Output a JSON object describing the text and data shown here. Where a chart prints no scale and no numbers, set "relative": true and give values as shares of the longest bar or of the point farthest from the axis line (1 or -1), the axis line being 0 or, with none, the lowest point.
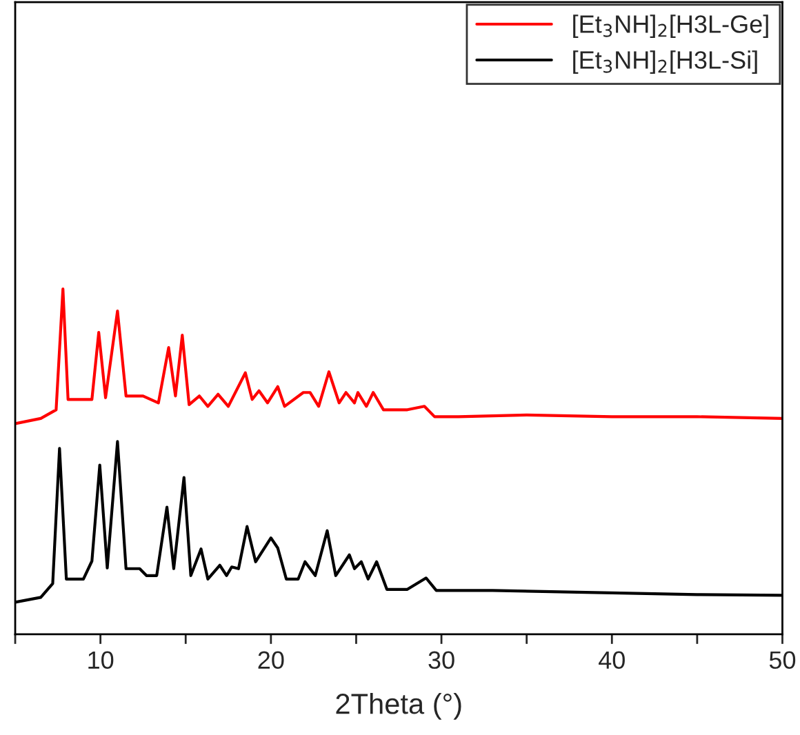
{
  "chart_data": {
    "type": "line",
    "relative": true,
    "xlabel": "2Theta (°)",
    "xlim": [
      5,
      50
    ],
    "xticks": [
      {
        "value": 5,
        "label": null
      },
      10,
      {
        "value": 15,
        "label": null
      },
      20,
      {
        "value": 25,
        "label": null
      },
      30,
      {
        "value": 35,
        "label": null
      },
      40,
      {
        "value": 45,
        "label": null
      },
      50
    ],
    "legend": "top right",
    "grid": false,
    "series": [
      {
        "name": "[Et$_{3}$NH]$_{2}$[H3L-Ge]",
        "color": "#ff0000",
        "x": [
          5,
          6.5,
          7.4,
          7.8,
          8.1,
          9.5,
          9.9,
          10.3,
          11.0,
          11.5,
          12.5,
          13.4,
          14.0,
          14.4,
          14.8,
          15.2,
          15.8,
          16.3,
          16.9,
          17.5,
          18.5,
          18.9,
          19.3,
          19.8,
          20.4,
          20.8,
          21.9,
          22.3,
          22.8,
          23.4,
          24.0,
          24.4,
          24.9,
          25.1,
          25.6,
          26.0,
          26.6,
          28.0,
          29.0,
          29.6,
          31,
          35,
          40,
          45,
          50
        ],
        "values": [
          0.61,
          0.625,
          0.65,
          1.0,
          0.68,
          0.68,
          0.874,
          0.685,
          0.936,
          0.69,
          0.69,
          0.67,
          0.83,
          0.69,
          0.866,
          0.665,
          0.69,
          0.66,
          0.695,
          0.66,
          0.757,
          0.68,
          0.705,
          0.67,
          0.717,
          0.66,
          0.7,
          0.7,
          0.66,
          0.76,
          0.67,
          0.7,
          0.67,
          0.7,
          0.66,
          0.7,
          0.65,
          0.65,
          0.66,
          0.63,
          0.63,
          0.635,
          0.63,
          0.63,
          0.625
        ]
      },
      {
        "name": "[Et$_{3}$NH]$_{2}$[H3L-Si]",
        "color": "#000000",
        "x": [
          5,
          6.5,
          7.2,
          7.6,
          8.0,
          9.0,
          9.5,
          9.96,
          10.4,
          11.0,
          11.5,
          12.3,
          12.7,
          13.3,
          13.9,
          14.3,
          14.9,
          15.3,
          15.9,
          16.3,
          17.0,
          17.4,
          17.7,
          18.1,
          18.6,
          19.1,
          20.0,
          20.4,
          20.9,
          21.6,
          22.0,
          22.6,
          23.3,
          23.8,
          24.6,
          24.9,
          25.3,
          25.7,
          26.2,
          26.8,
          28.0,
          29.1,
          29.7,
          33,
          40,
          45,
          50
        ],
        "values": [
          0.093,
          0.107,
          0.147,
          0.538,
          0.16,
          0.16,
          0.212,
          0.49,
          0.192,
          0.558,
          0.19,
          0.19,
          0.17,
          0.17,
          0.368,
          0.19,
          0.454,
          0.17,
          0.247,
          0.16,
          0.2,
          0.17,
          0.195,
          0.19,
          0.312,
          0.21,
          0.279,
          0.25,
          0.16,
          0.16,
          0.21,
          0.17,
          0.3,
          0.17,
          0.23,
          0.19,
          0.21,
          0.16,
          0.21,
          0.13,
          0.13,
          0.163,
          0.127,
          0.127,
          0.12,
          0.115,
          0.113
        ]
      }
    ]
  }
}
